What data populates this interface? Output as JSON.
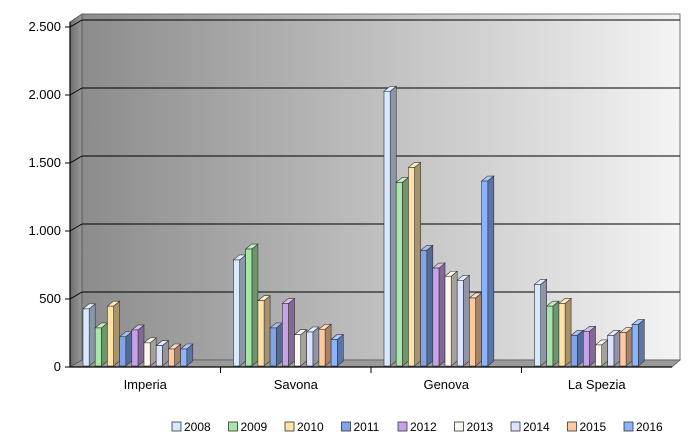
{
  "chart_data": {
    "type": "bar",
    "title": "",
    "xlabel": "",
    "ylabel": "",
    "categories": [
      "Imperia",
      "Savona",
      "Genova",
      "La Spezia"
    ],
    "ylim": [
      0,
      2500
    ],
    "yticks": [
      0,
      500,
      1000,
      1500,
      2000,
      2500
    ],
    "ytick_labels": [
      "0",
      "500",
      "1.000",
      "1.500",
      "2.000",
      "2.500"
    ],
    "grid": true,
    "legend_position": "bottom",
    "series": [
      {
        "name": "2008",
        "color": "#d6e9ff",
        "values": [
          420,
          780,
          2020,
          600
        ]
      },
      {
        "name": "2009",
        "color": "#a8e6a8",
        "values": [
          280,
          860,
          1350,
          440
        ]
      },
      {
        "name": "2010",
        "color": "#ffe2a8",
        "values": [
          440,
          480,
          1460,
          460
        ]
      },
      {
        "name": "2011",
        "color": "#7fa4e8",
        "values": [
          215,
          280,
          850,
          225
        ]
      },
      {
        "name": "2012",
        "color": "#c8a2e8",
        "values": [
          265,
          460,
          720,
          255
        ]
      },
      {
        "name": "2013",
        "color": "#fff8ee",
        "values": [
          170,
          230,
          660,
          155
        ]
      },
      {
        "name": "2014",
        "color": "#dde4ff",
        "values": [
          150,
          250,
          630,
          225
        ]
      },
      {
        "name": "2015",
        "color": "#ffc9a0",
        "values": [
          125,
          270,
          500,
          245
        ]
      },
      {
        "name": "2016",
        "color": "#8ab4ff",
        "values": [
          125,
          195,
          1360,
          305
        ]
      }
    ]
  }
}
